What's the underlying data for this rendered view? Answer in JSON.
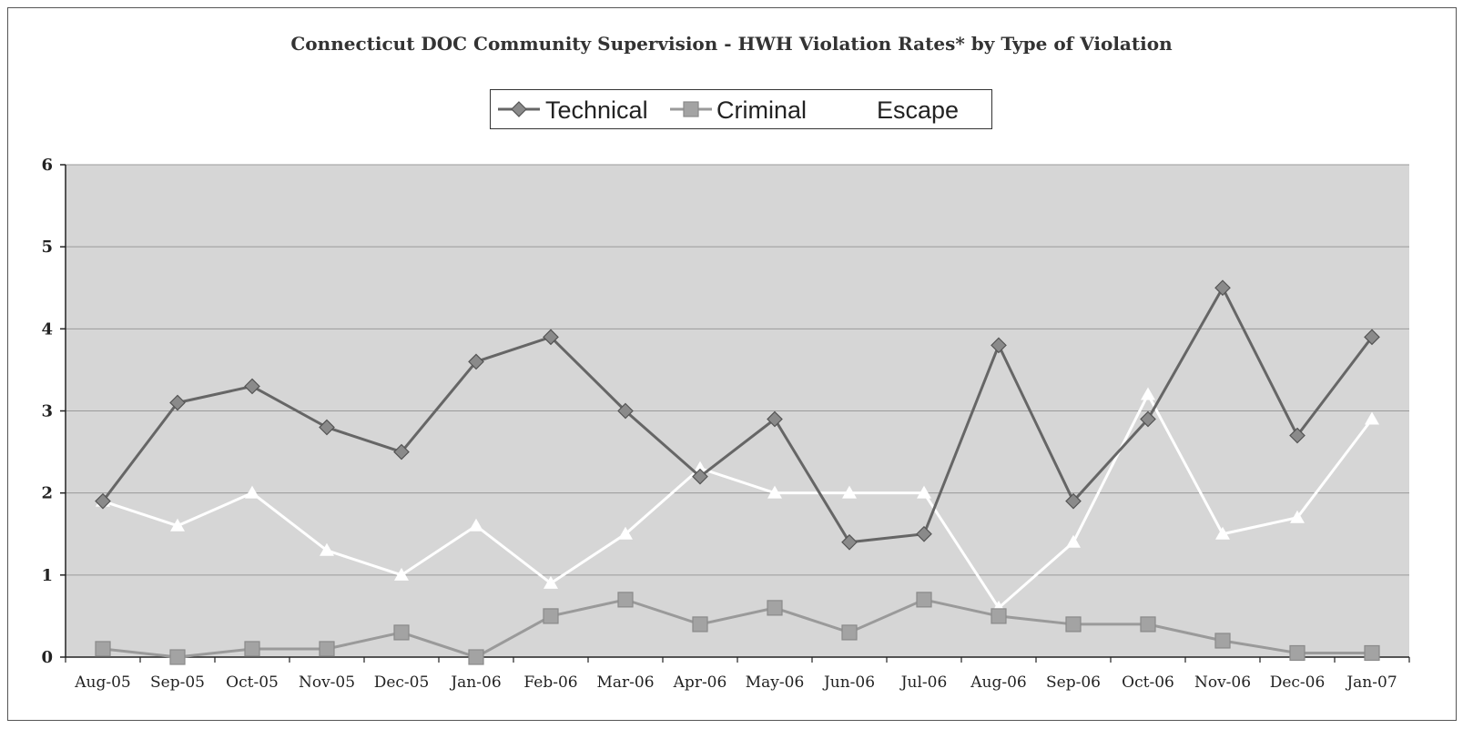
{
  "chart_data": {
    "type": "line",
    "title": "Connecticut DOC Community Supervision - HWH Violation Rates* by Type of Violation",
    "xlabel": "",
    "ylabel": "",
    "ylim": [
      0,
      6
    ],
    "yticks": [
      "0",
      "1",
      "2",
      "3",
      "4",
      "5",
      "6"
    ],
    "grid": true,
    "legend_position": "top-center",
    "categories": [
      "Aug-05",
      "Sep-05",
      "Oct-05",
      "Nov-05",
      "Dec-05",
      "Jan-06",
      "Feb-06",
      "Mar-06",
      "Apr-06",
      "May-06",
      "Jun-06",
      "Jul-06",
      "Aug-06",
      "Sep-06",
      "Oct-06",
      "Nov-06",
      "Dec-06",
      "Jan-07"
    ],
    "series": [
      {
        "name": "Technical",
        "marker": "diamond",
        "color": "#777777",
        "values": [
          1.9,
          3.1,
          3.3,
          2.8,
          2.5,
          3.6,
          3.9,
          3.0,
          2.2,
          2.9,
          1.4,
          1.5,
          3.8,
          1.9,
          2.9,
          4.5,
          2.7,
          3.9
        ]
      },
      {
        "name": "Criminal",
        "marker": "square",
        "color": "#999999",
        "values": [
          0.1,
          0.0,
          0.1,
          0.1,
          0.3,
          0.0,
          0.5,
          0.7,
          0.4,
          0.6,
          0.3,
          0.7,
          0.5,
          0.4,
          0.4,
          0.2,
          0.05,
          0.05
        ]
      },
      {
        "name": "Escape",
        "marker": "triangle",
        "color": "#ffffff",
        "values": [
          1.9,
          1.6,
          2.0,
          1.3,
          1.0,
          1.6,
          0.9,
          1.5,
          2.3,
          2.0,
          2.0,
          2.0,
          0.6,
          1.4,
          3.2,
          1.5,
          1.7,
          2.9
        ]
      }
    ]
  }
}
